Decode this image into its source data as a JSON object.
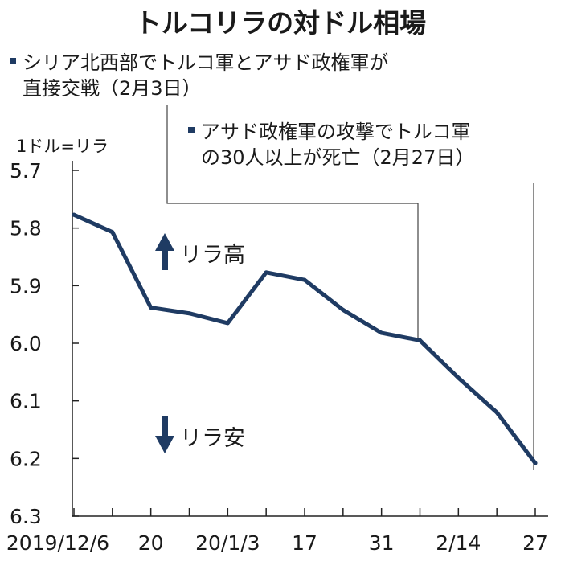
{
  "chart_data": {
    "type": "line",
    "title": "トルコリラの対ドル相場",
    "unit_label": "1ドル=リラ",
    "y_axis": {
      "ticks": [
        "5.7",
        "5.8",
        "5.9",
        "6.0",
        "6.1",
        "6.2",
        "6.3"
      ],
      "inverted": true,
      "ylim": [
        5.7,
        6.3
      ]
    },
    "x_tick_labels": [
      "2019/12/6",
      "20",
      "20/1/3",
      "17",
      "31",
      "2/14",
      "27"
    ],
    "series": [
      {
        "values": [
          5.777,
          5.807,
          5.938,
          5.948,
          5.965,
          5.877,
          5.89,
          5.942,
          5.982,
          5.995,
          6.06,
          6.12,
          6.208
        ]
      }
    ],
    "grid": false,
    "direction_labels": {
      "up": "リラ高",
      "down": "リラ安"
    },
    "annotations": [
      {
        "lines": [
          "シリア北西部でトルコ軍とアサド政権軍が",
          "直接交戦（2月3日）"
        ]
      },
      {
        "lines": [
          "アサド政権軍の攻撃でトルコ軍",
          "の30人以上が死亡（2月27日）"
        ]
      }
    ],
    "colors": {
      "line": "#1f3b63",
      "axis": "#222222",
      "leader": "#444444"
    }
  }
}
